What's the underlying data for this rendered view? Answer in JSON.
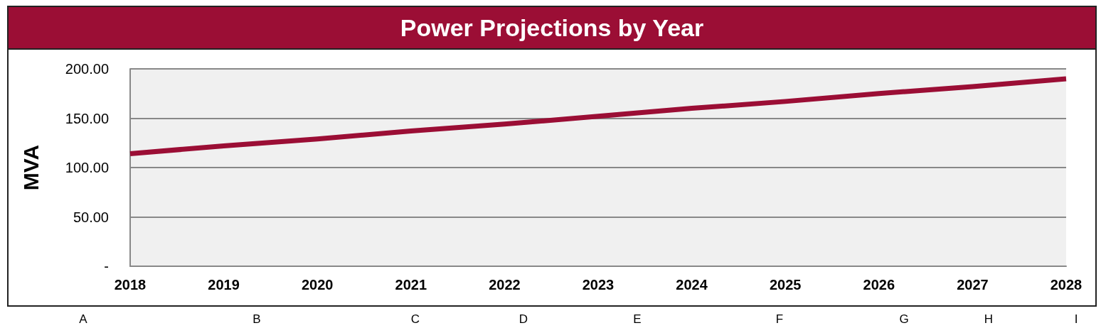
{
  "chart_data": {
    "type": "line",
    "title": "Power Projections by Year",
    "ylabel": "MVA",
    "categories": [
      "2018",
      "2019",
      "2020",
      "2021",
      "2022",
      "2023",
      "2024",
      "2025",
      "2026",
      "2027",
      "2028"
    ],
    "series": [
      {
        "color": "#9b0e35",
        "values": [
          114,
          122,
          129,
          137,
          144,
          152,
          160,
          167,
          175,
          182,
          190
        ]
      }
    ],
    "ylim": [
      0,
      200
    ],
    "yticks": [
      {
        "value": 0,
        "label": "-"
      },
      {
        "value": 50,
        "label": "50.00"
      },
      {
        "value": 100,
        "label": "100.00"
      },
      {
        "value": 150,
        "label": "150.00"
      },
      {
        "value": 200,
        "label": "200.00"
      }
    ],
    "grid": "y",
    "annotations": [
      "A",
      "B",
      "C",
      "D",
      "E",
      "F",
      "G",
      "H",
      "I"
    ]
  }
}
